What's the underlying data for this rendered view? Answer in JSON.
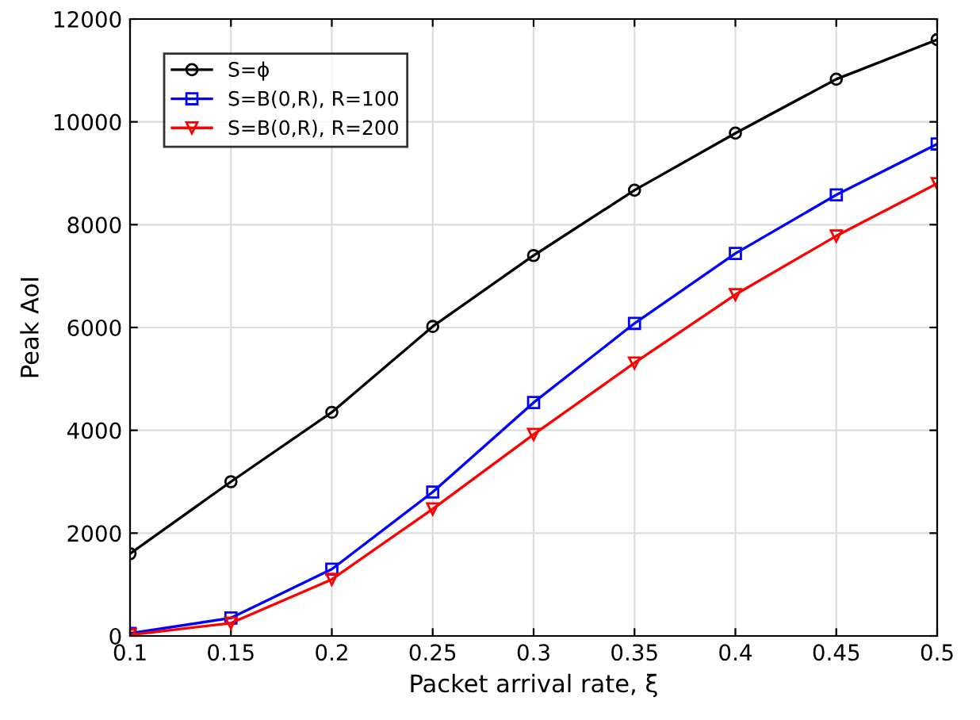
{
  "chart_data": {
    "type": "line",
    "xlabel": "Packet arrival rate, ξ",
    "ylabel": "Peak AoI",
    "x": [
      0.1,
      0.15,
      0.2,
      0.25,
      0.3,
      0.35,
      0.4,
      0.45,
      0.5
    ],
    "series": [
      {
        "name": "S=ϕ",
        "color": "#000000",
        "marker": "circle",
        "values": [
          1600,
          3000,
          4350,
          6020,
          7400,
          8670,
          9780,
          10830,
          11600
        ]
      },
      {
        "name": "S=B(0,R), R=100",
        "color": "#0000ff",
        "marker": "square",
        "values": [
          50,
          350,
          1300,
          2800,
          4540,
          6080,
          7440,
          8580,
          9570
        ]
      },
      {
        "name": "S=B(0,R), R=200",
        "color": "#ff0000",
        "marker": "triangle",
        "values": [
          20,
          250,
          1100,
          2470,
          3920,
          5310,
          6640,
          7780,
          8800
        ]
      }
    ],
    "xlim": [
      0.1,
      0.5
    ],
    "xticks": [
      0.1,
      0.15,
      0.2,
      0.25,
      0.3,
      0.35,
      0.4,
      0.45,
      0.5
    ],
    "ylim": [
      0,
      12000
    ],
    "yticks": [
      0,
      2000,
      4000,
      6000,
      8000,
      10000,
      12000
    ],
    "grid": true,
    "legend": "top left",
    "line_style": "solid"
  }
}
